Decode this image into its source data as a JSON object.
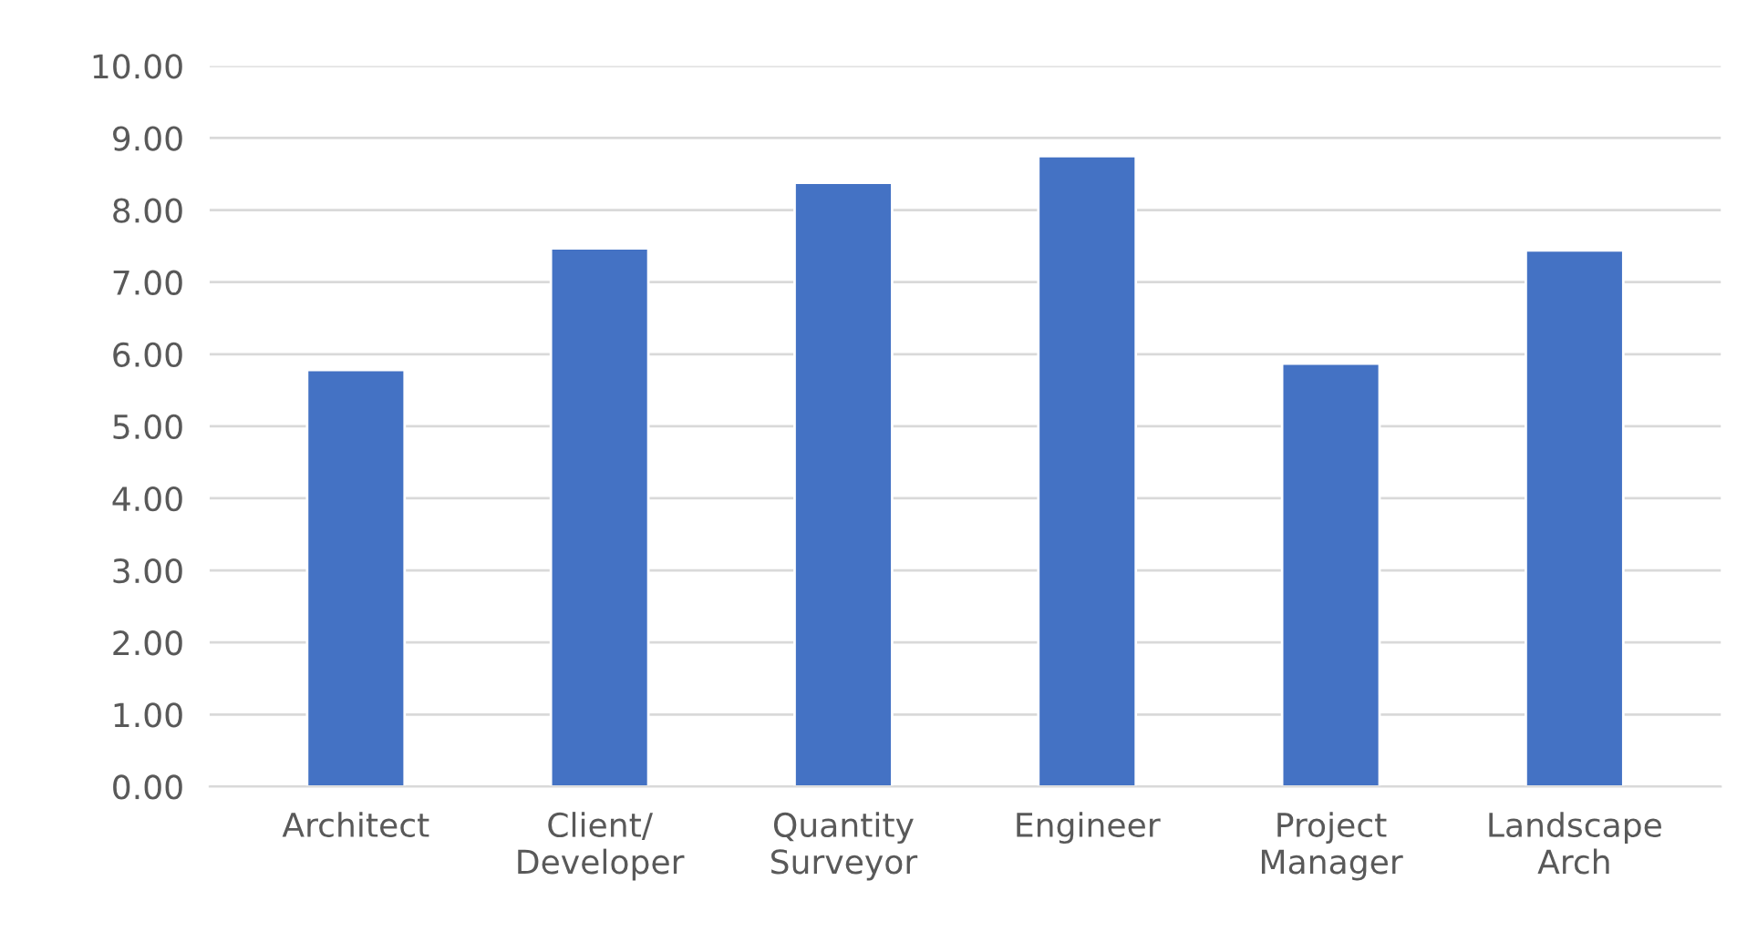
{
  "chart_data": {
    "type": "bar",
    "categories": [
      "Architect",
      "Client/\nDeveloper",
      "Quantity\nSurveyor",
      "Engineer",
      "Project\nManager",
      "Landscape\nArch"
    ],
    "values": [
      5.78,
      7.47,
      8.38,
      8.75,
      5.87,
      7.44
    ],
    "color": "#4472c4",
    "ylim": [
      0,
      10
    ],
    "yticks": [
      {
        "value": 0,
        "label": "0.00"
      },
      {
        "value": 1,
        "label": "1.00"
      },
      {
        "value": 2,
        "label": "2.00"
      },
      {
        "value": 3,
        "label": "3.00"
      },
      {
        "value": 4,
        "label": "4.00"
      },
      {
        "value": 5,
        "label": "5.00"
      },
      {
        "value": 6,
        "label": "6.00"
      },
      {
        "value": 7,
        "label": "7.00"
      },
      {
        "value": 8,
        "label": "8.00"
      },
      {
        "value": 9,
        "label": "9.00"
      },
      {
        "value": 10,
        "label": "10.00"
      }
    ],
    "grid": "y",
    "legend": false
  }
}
